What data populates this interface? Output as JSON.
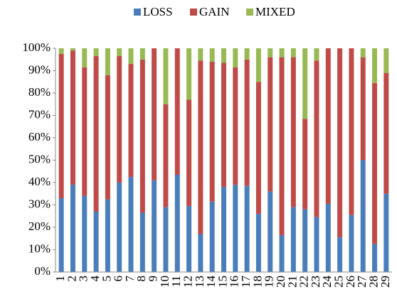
{
  "chart_data": {
    "type": "stacked_bar_100",
    "categories": [
      "1",
      "2",
      "3",
      "4",
      "5",
      "6",
      "7",
      "8",
      "9",
      "10",
      "11",
      "12",
      "13",
      "14",
      "15",
      "16",
      "17",
      "18",
      "19",
      "20",
      "21",
      "22",
      "23",
      "24",
      "25",
      "26",
      "27",
      "28",
      "29"
    ],
    "series": [
      {
        "name": "LOSS",
        "color": "#4a7ebb",
        "values": [
          33,
          39,
          34,
          27,
          32.5,
          40,
          42.5,
          26.5,
          41,
          29,
          43.5,
          29.5,
          17,
          31.5,
          38,
          39,
          38.5,
          26,
          36,
          16.5,
          29,
          28,
          24.5,
          30.5,
          15.5,
          25.5,
          50,
          12.5,
          35
        ]
      },
      {
        "name": "GAIN",
        "color": "#be4b48",
        "values": [
          64.5,
          60,
          57.5,
          69.5,
          55.5,
          56.5,
          50.5,
          68.5,
          59,
          46,
          56.5,
          47.5,
          77.5,
          62.5,
          55.5,
          52.5,
          56.5,
          59,
          60,
          79.5,
          67,
          40.5,
          70,
          69.5,
          84.5,
          74.5,
          46,
          72,
          54
        ]
      },
      {
        "name": "MIXED",
        "color": "#98b954",
        "values": [
          2.5,
          1,
          8.5,
          3.5,
          12,
          3.5,
          7,
          5,
          0,
          25,
          0,
          23,
          5.5,
          6,
          6.5,
          8.5,
          5,
          15,
          4,
          4,
          4,
          31.5,
          5.5,
          0,
          0,
          0,
          4,
          15.5,
          11
        ]
      }
    ],
    "ylim": [
      0,
      100
    ],
    "yticks": [
      {
        "value": 0,
        "label": "0%"
      },
      {
        "value": 10,
        "label": "10%"
      },
      {
        "value": 20,
        "label": "20%"
      },
      {
        "value": 30,
        "label": "30%"
      },
      {
        "value": 40,
        "label": "40%"
      },
      {
        "value": 50,
        "label": "50%"
      },
      {
        "value": 60,
        "label": "60%"
      },
      {
        "value": 70,
        "label": "70%"
      },
      {
        "value": 80,
        "label": "80%"
      },
      {
        "value": 90,
        "label": "90%"
      },
      {
        "value": 100,
        "label": "100%"
      }
    ],
    "legend": "top"
  }
}
